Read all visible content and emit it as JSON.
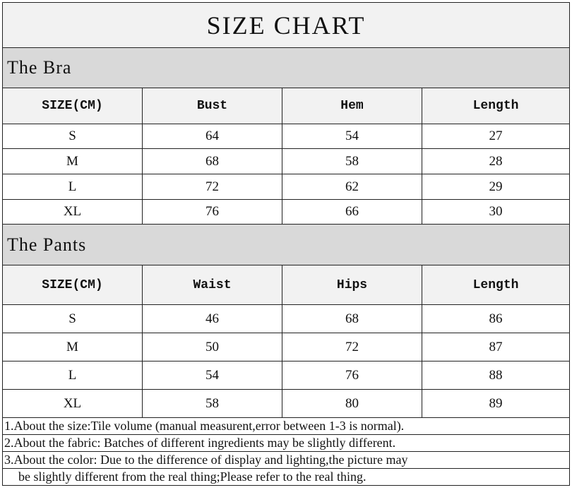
{
  "title": "SIZE CHART",
  "bra": {
    "heading": "The Bra",
    "columns": [
      "SIZE(CM)",
      "Bust",
      "Hem",
      "Length"
    ],
    "rows": [
      [
        "S",
        "64",
        "54",
        "27"
      ],
      [
        "M",
        "68",
        "58",
        "28"
      ],
      [
        "L",
        "72",
        "62",
        "29"
      ],
      [
        "XL",
        "76",
        "66",
        "30"
      ]
    ]
  },
  "pants": {
    "heading": "The Pants",
    "columns": [
      "SIZE(CM)",
      "Waist",
      "Hips",
      "Length"
    ],
    "rows": [
      [
        "S",
        "46",
        "68",
        "86"
      ],
      [
        "M",
        "50",
        "72",
        "87"
      ],
      [
        "L",
        "54",
        "76",
        "88"
      ],
      [
        "XL",
        "58",
        "80",
        "89"
      ]
    ]
  },
  "notes": [
    "1.About the size:Tile volume (manual measurent,error between 1-3 is normal).",
    "2.About the fabric: Batches of different ingredients may be slightly different.",
    "3.About the color: Due to the difference of display and lighting,the picture may",
    "be slightly different from the real thing;Please refer to the real thing."
  ],
  "colors": {
    "title_bg": "#f2f2f2",
    "section_bg": "#d9d9d9",
    "header_bg": "#f2f2f2"
  }
}
